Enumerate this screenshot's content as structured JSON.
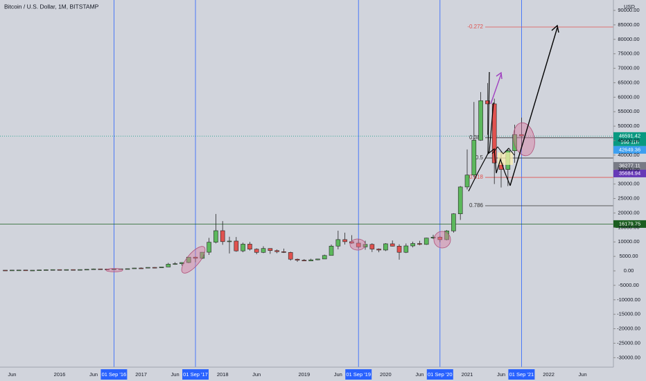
{
  "chart_data": {
    "type": "candlestick",
    "title": "Bitcoin / U.S. Dollar, 1M, BITSTAMP",
    "currency": "USD",
    "categories": [
      "2015-05",
      "2015-06",
      "2015-07",
      "2015-08",
      "2015-09",
      "2015-10",
      "2015-11",
      "2015-12",
      "2016-01",
      "2016-02",
      "2016-03",
      "2016-04",
      "2016-05",
      "2016-06",
      "2016-07",
      "2016-08",
      "2016-09",
      "2016-10",
      "2016-11",
      "2016-12",
      "2017-01",
      "2017-02",
      "2017-03",
      "2017-04",
      "2017-05",
      "2017-06",
      "2017-07",
      "2017-08",
      "2017-09",
      "2017-10",
      "2017-11",
      "2017-12",
      "2018-01",
      "2018-02",
      "2018-03",
      "2018-04",
      "2018-05",
      "2018-06",
      "2018-07",
      "2018-08",
      "2018-09",
      "2018-10",
      "2018-11",
      "2018-12",
      "2019-01",
      "2019-02",
      "2019-03",
      "2019-04",
      "2019-05",
      "2019-06",
      "2019-07",
      "2019-08",
      "2019-09",
      "2019-10",
      "2019-11",
      "2019-12",
      "2020-01",
      "2020-02",
      "2020-03",
      "2020-04",
      "2020-05",
      "2020-06",
      "2020-07",
      "2020-08",
      "2020-09",
      "2020-10",
      "2020-11",
      "2020-12",
      "2021-01",
      "2021-02",
      "2021-03",
      "2021-04",
      "2021-05",
      "2021-06",
      "2021-07",
      "2021-08",
      "2021-09"
    ],
    "open": [
      236,
      230,
      263,
      284,
      230,
      236,
      314,
      377,
      430,
      368,
      437,
      416,
      448,
      531,
      673,
      624,
      574,
      609,
      700,
      742,
      966,
      965,
      1190,
      1079,
      1348,
      2300,
      2480,
      2875,
      4735,
      4340,
      6440,
      9900,
      13880,
      10100,
      10300,
      6900,
      9240,
      7490,
      6390,
      7730,
      7010,
      6630,
      6370,
      4020,
      3690,
      3430,
      3810,
      4100,
      5320,
      8560,
      10800,
      10080,
      9580,
      8290,
      9150,
      7540,
      7190,
      9350,
      8530,
      6410,
      8620,
      9450,
      9140,
      11330,
      11650,
      10780,
      13800,
      19700,
      28990,
      33110,
      45140,
      58800,
      57700,
      37300,
      35040,
      41500,
      47100
    ],
    "high": [
      247,
      267,
      317,
      285,
      244,
      332,
      502,
      468,
      462,
      445,
      439,
      467,
      549,
      779,
      704,
      626,
      623,
      720,
      754,
      979,
      1153,
      1203,
      1280,
      1365,
      2760,
      2980,
      2920,
      4740,
      4980,
      6470,
      11400,
      19666,
      17200,
      11790,
      11700,
      9760,
      9990,
      7770,
      8490,
      7760,
      7400,
      7680,
      6620,
      4260,
      4070,
      4200,
      4130,
      5600,
      9090,
      13880,
      13200,
      12330,
      10920,
      10400,
      9520,
      7750,
      9580,
      10500,
      9190,
      9460,
      10080,
      10380,
      11450,
      12470,
      12070,
      14100,
      19900,
      29300,
      41950,
      58350,
      61780,
      64900,
      59500,
      41300,
      42320,
      50500,
      52950
    ],
    "low": [
      228,
      222,
      253,
      198,
      225,
      236,
      290,
      349,
      354,
      365,
      394,
      413,
      439,
      527,
      600,
      468,
      567,
      604,
      680,
      742,
      751,
      915,
      891,
      1064,
      1348,
      2100,
      1830,
      2670,
      2970,
      4110,
      5500,
      9500,
      9000,
      6000,
      6600,
      6430,
      7030,
      5760,
      6120,
      5880,
      6100,
      6200,
      3550,
      3120,
      3350,
      3390,
      3680,
      4090,
      5330,
      7450,
      9100,
      9320,
      7710,
      7300,
      6520,
      6420,
      6850,
      8430,
      3850,
      6150,
      8100,
      8830,
      8980,
      10990,
      9880,
      10550,
      13200,
      17600,
      28130,
      32400,
      44950,
      47000,
      30000,
      28800,
      29300,
      37330,
      42800
    ],
    "close": [
      230,
      263,
      284,
      230,
      236,
      314,
      377,
      430,
      368,
      437,
      416,
      448,
      531,
      673,
      624,
      574,
      609,
      700,
      742,
      966,
      965,
      1190,
      1079,
      1348,
      2300,
      2480,
      2875,
      4735,
      4340,
      6440,
      9900,
      13880,
      10100,
      10300,
      6900,
      9240,
      7490,
      6390,
      7730,
      7010,
      6630,
      6370,
      4020,
      3690,
      3430,
      3810,
      4100,
      5320,
      8560,
      10800,
      10080,
      9580,
      8290,
      9150,
      7540,
      7190,
      9350,
      8530,
      6410,
      8620,
      9450,
      9140,
      11330,
      11650,
      10780,
      13800,
      19700,
      28990,
      33110,
      45140,
      58800,
      57700,
      37300,
      35040,
      41500,
      47100,
      46591.42
    ],
    "up_color": "#5cb85c",
    "down_color": "#e0524f",
    "ylim": [
      -33270,
      93590
    ],
    "yticks": [
      {
        "value": 90000,
        "label": "90000.00"
      },
      {
        "value": 85000,
        "label": "85000.00"
      },
      {
        "value": 80000,
        "label": "80000.00"
      },
      {
        "value": 75000,
        "label": "75000.00"
      },
      {
        "value": 70000,
        "label": "70000.00"
      },
      {
        "value": 65000,
        "label": "65000.00"
      },
      {
        "value": 60000,
        "label": "60000.00"
      },
      {
        "value": 55000,
        "label": "55000.00"
      },
      {
        "value": 50000,
        "label": "50000.00"
      },
      {
        "value": 45000,
        "label": "45000.00"
      },
      {
        "value": 40000,
        "label": "40000.00"
      },
      {
        "value": 35000,
        "label": "35000.00"
      },
      {
        "value": 30000,
        "label": "30000.00"
      },
      {
        "value": 25000,
        "label": "25000.00"
      },
      {
        "value": 20000,
        "label": "20000.00"
      },
      {
        "value": 15000,
        "label": "15000.00"
      },
      {
        "value": 10000,
        "label": "10000.00"
      },
      {
        "value": 5000,
        "label": "5000.00"
      },
      {
        "value": 0,
        "label": "0.00"
      },
      {
        "value": -5000,
        "label": "-5000.00"
      },
      {
        "value": -10000,
        "label": "-10000.00"
      },
      {
        "value": -15000,
        "label": "-15000.00"
      },
      {
        "value": -20000,
        "label": "-20000.00"
      },
      {
        "value": -25000,
        "label": "-25000.00"
      },
      {
        "value": -30000,
        "label": "-30000.00"
      }
    ],
    "xticks": [
      {
        "value": "2015-06",
        "label": "Jun"
      },
      {
        "value": "2016-01",
        "label": "2016"
      },
      {
        "value": "2016-06",
        "label": "Jun"
      },
      {
        "value": "2017-01",
        "label": "2017"
      },
      {
        "value": "2017-06",
        "label": "Jun"
      },
      {
        "value": "2018-01",
        "label": "2018"
      },
      {
        "value": "2018-06",
        "label": "Jun"
      },
      {
        "value": "2019-01",
        "label": "2019"
      },
      {
        "value": "2019-06",
        "label": "Jun"
      },
      {
        "value": "2020-01",
        "label": "2020"
      },
      {
        "value": "2020-06",
        "label": "Jun"
      },
      {
        "value": "2021-01",
        "label": "2021"
      },
      {
        "value": "2021-06",
        "label": "Jun"
      },
      {
        "value": "2022-01",
        "label": "2022"
      },
      {
        "value": "2022-06",
        "label": "Jun"
      }
    ],
    "markers": [
      {
        "value": "2016-09",
        "label": "01 Sep '16"
      },
      {
        "value": "2017-09",
        "label": "01 Sep '17"
      },
      {
        "value": "2019-09",
        "label": "01 Sep '19"
      },
      {
        "value": "2020-09",
        "label": "01 Sep '20"
      },
      {
        "value": "2021-09",
        "label": "01 Sep '21"
      }
    ],
    "fib_levels": [
      {
        "label": "-0.272",
        "price": 84250,
        "color": "#e0524f"
      },
      {
        "label": "0.382",
        "price": 46000,
        "color": "#333333"
      },
      {
        "label": "0.5",
        "price": 39000,
        "color": "#333333"
      },
      {
        "label": "0.618",
        "price": 32300,
        "color": "#e0524f"
      },
      {
        "label": "0.786",
        "price": 22500,
        "color": "#333333"
      }
    ],
    "horizontal_line": {
      "price": 16179.75,
      "color": "#1b5e20"
    },
    "price_tags": [
      {
        "value": 46591.42,
        "label": "46591.42",
        "countdown": "16d 11h",
        "color": "#089981"
      },
      {
        "value": 42649.36,
        "label": "42649.36",
        "color": "#3d9ff0"
      },
      {
        "value": 36277.11,
        "label": "36277.11",
        "color": "#787b86"
      },
      {
        "value": 35684.94,
        "label": "35684.94",
        "color": "#673ab7"
      },
      {
        "value": 16179.75,
        "label": "16179.75",
        "color": "#1b5e20"
      }
    ]
  }
}
